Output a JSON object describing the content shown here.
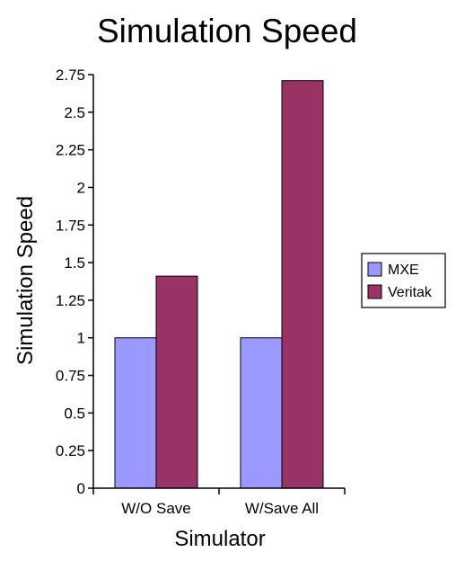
{
  "chart_data": {
    "type": "bar",
    "title": "Simulation Speed",
    "xlabel": "Simulator",
    "ylabel": "Simulation Speed",
    "categories": [
      "W/O Save",
      "W/Save All"
    ],
    "series": [
      {
        "name": "MXE",
        "values": [
          1.0,
          1.0
        ],
        "color": "#9999ff"
      },
      {
        "name": "Veritak",
        "values": [
          1.41,
          2.71
        ],
        "color": "#993366"
      }
    ],
    "ylim": [
      0,
      2.75
    ],
    "yticks": [
      "0",
      "0.25",
      "0.5",
      "0.75",
      "1",
      "1.25",
      "1.5",
      "1.75",
      "2",
      "2.25",
      "2.5",
      "2.75"
    ],
    "grid": false,
    "legend_position": "right"
  }
}
